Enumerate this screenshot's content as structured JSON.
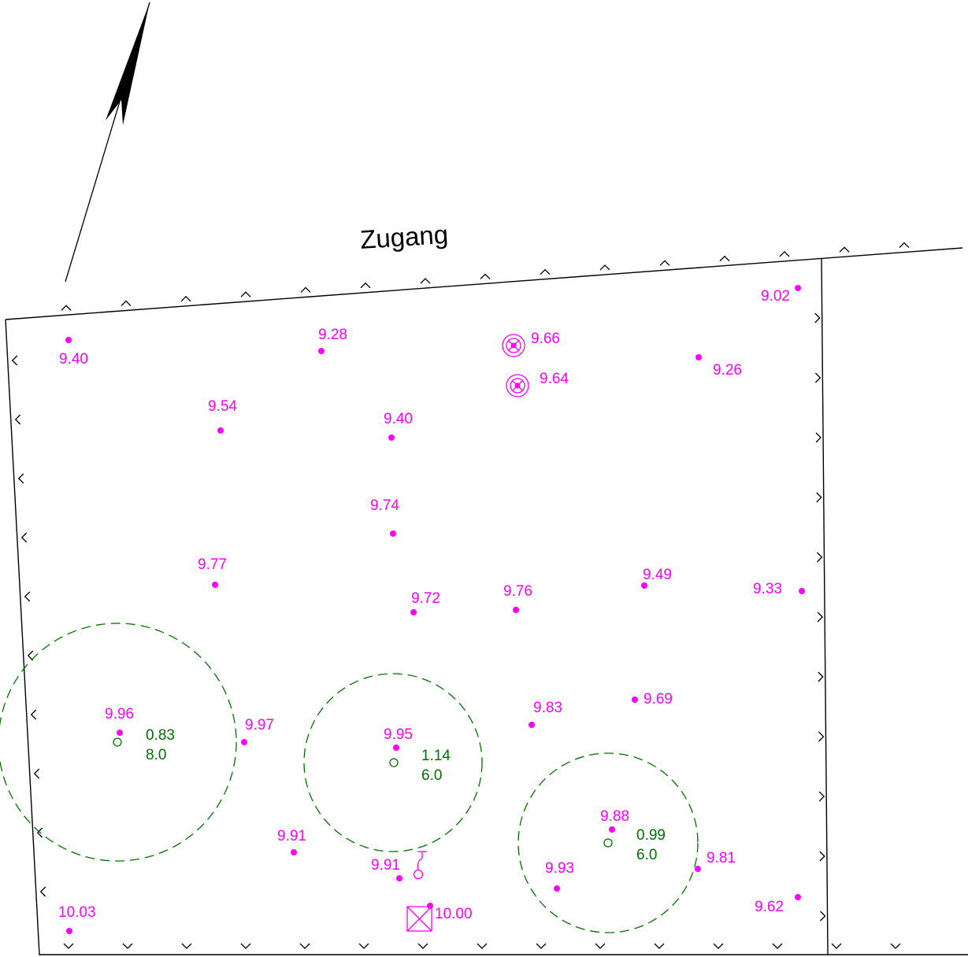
{
  "title": "Zugang",
  "colors": {
    "elevation": "#ff00ff",
    "tree": "#007000",
    "boundary": "#000000"
  },
  "north_arrow": {
    "icon": "north-arrow-icon"
  },
  "elevation_points": [
    {
      "id": "p1",
      "value": "9.40"
    },
    {
      "id": "p2",
      "value": "9.28"
    },
    {
      "id": "p3",
      "value": "9.66"
    },
    {
      "id": "p4",
      "value": "9.64"
    },
    {
      "id": "p5",
      "value": "9.02"
    },
    {
      "id": "p6",
      "value": "9.26"
    },
    {
      "id": "p7",
      "value": "9.54"
    },
    {
      "id": "p8",
      "value": "9.40"
    },
    {
      "id": "p9",
      "value": "9.74"
    },
    {
      "id": "p10",
      "value": "9.77"
    },
    {
      "id": "p11",
      "value": "9.72"
    },
    {
      "id": "p12",
      "value": "9.76"
    },
    {
      "id": "p13",
      "value": "9.49"
    },
    {
      "id": "p14",
      "value": "9.33"
    },
    {
      "id": "p15",
      "value": "9.96"
    },
    {
      "id": "p16",
      "value": "9.97"
    },
    {
      "id": "p17",
      "value": "9.95"
    },
    {
      "id": "p18",
      "value": "9.83"
    },
    {
      "id": "p19",
      "value": "9.69"
    },
    {
      "id": "p20",
      "value": "9.88"
    },
    {
      "id": "p21",
      "value": "9.91"
    },
    {
      "id": "p22",
      "value": "9.91"
    },
    {
      "id": "p23",
      "value": "9.93"
    },
    {
      "id": "p24",
      "value": "9.81"
    },
    {
      "id": "p25",
      "value": "9.62"
    },
    {
      "id": "p26",
      "value": "10.03"
    },
    {
      "id": "p27",
      "value": "10.00"
    }
  ],
  "trees": [
    {
      "id": "t1",
      "trunk": "0.83",
      "crown": "8.0"
    },
    {
      "id": "t2",
      "trunk": "1.14",
      "crown": "6.0"
    },
    {
      "id": "t3",
      "trunk": "0.99",
      "crown": "6.0"
    }
  ]
}
